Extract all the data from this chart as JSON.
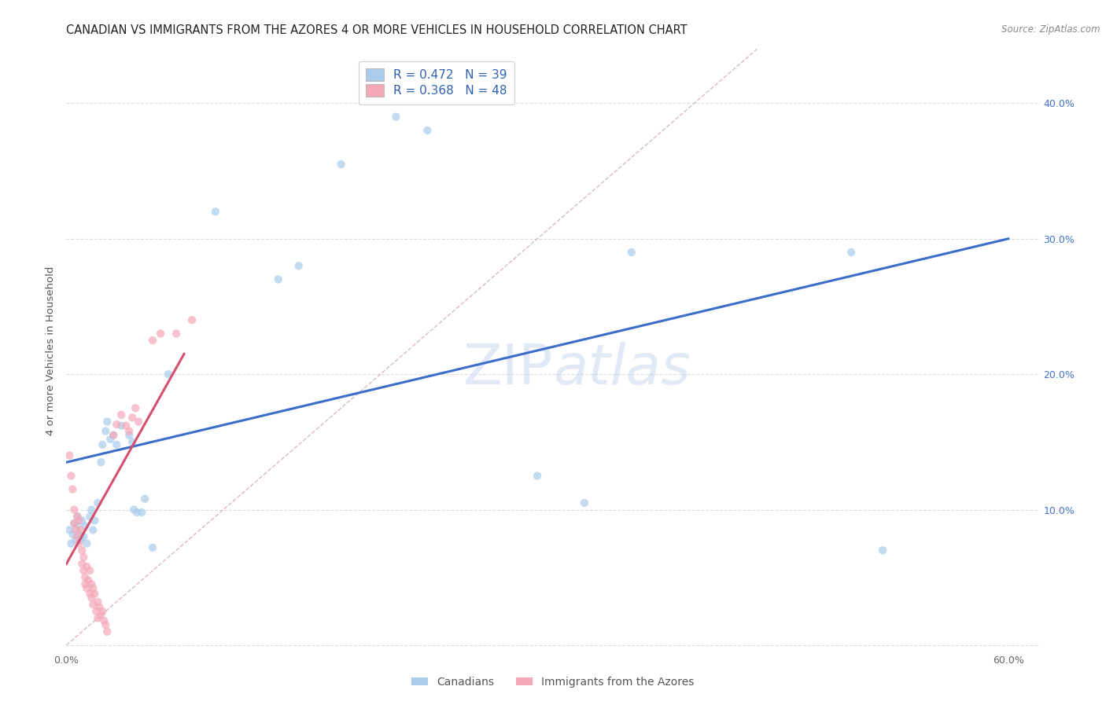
{
  "title": "CANADIAN VS IMMIGRANTS FROM THE AZORES 4 OR MORE VEHICLES IN HOUSEHOLD CORRELATION CHART",
  "source": "Source: ZipAtlas.com",
  "ylabel": "4 or more Vehicles in Household",
  "watermark": "ZIPatlas",
  "xlim": [
    0.0,
    0.62
  ],
  "ylim": [
    -0.005,
    0.44
  ],
  "xticks": [
    0.0,
    0.1,
    0.2,
    0.3,
    0.4,
    0.5,
    0.6
  ],
  "yticks": [
    0.0,
    0.1,
    0.2,
    0.3,
    0.4
  ],
  "canadians_scatter": [
    [
      0.002,
      0.085
    ],
    [
      0.003,
      0.075
    ],
    [
      0.004,
      0.082
    ],
    [
      0.005,
      0.09
    ],
    [
      0.006,
      0.078
    ],
    [
      0.007,
      0.088
    ],
    [
      0.007,
      0.095
    ],
    [
      0.008,
      0.082
    ],
    [
      0.009,
      0.078
    ],
    [
      0.01,
      0.092
    ],
    [
      0.011,
      0.08
    ],
    [
      0.012,
      0.088
    ],
    [
      0.013,
      0.075
    ],
    [
      0.015,
      0.095
    ],
    [
      0.016,
      0.1
    ],
    [
      0.017,
      0.085
    ],
    [
      0.018,
      0.092
    ],
    [
      0.02,
      0.105
    ],
    [
      0.022,
      0.135
    ],
    [
      0.023,
      0.148
    ],
    [
      0.025,
      0.158
    ],
    [
      0.026,
      0.165
    ],
    [
      0.028,
      0.152
    ],
    [
      0.03,
      0.155
    ],
    [
      0.032,
      0.148
    ],
    [
      0.035,
      0.162
    ],
    [
      0.04,
      0.155
    ],
    [
      0.042,
      0.15
    ],
    [
      0.043,
      0.1
    ],
    [
      0.045,
      0.098
    ],
    [
      0.048,
      0.098
    ],
    [
      0.05,
      0.108
    ],
    [
      0.055,
      0.072
    ],
    [
      0.065,
      0.2
    ],
    [
      0.095,
      0.32
    ],
    [
      0.135,
      0.27
    ],
    [
      0.148,
      0.28
    ],
    [
      0.175,
      0.355
    ],
    [
      0.21,
      0.39
    ],
    [
      0.23,
      0.38
    ],
    [
      0.3,
      0.125
    ],
    [
      0.33,
      0.105
    ],
    [
      0.36,
      0.29
    ],
    [
      0.5,
      0.29
    ],
    [
      0.52,
      0.07
    ]
  ],
  "azores_scatter": [
    [
      0.002,
      0.14
    ],
    [
      0.003,
      0.125
    ],
    [
      0.004,
      0.115
    ],
    [
      0.005,
      0.1
    ],
    [
      0.005,
      0.09
    ],
    [
      0.006,
      0.085
    ],
    [
      0.007,
      0.095
    ],
    [
      0.007,
      0.08
    ],
    [
      0.008,
      0.092
    ],
    [
      0.008,
      0.075
    ],
    [
      0.009,
      0.085
    ],
    [
      0.01,
      0.07
    ],
    [
      0.01,
      0.06
    ],
    [
      0.011,
      0.065
    ],
    [
      0.011,
      0.055
    ],
    [
      0.012,
      0.05
    ],
    [
      0.012,
      0.045
    ],
    [
      0.013,
      0.058
    ],
    [
      0.013,
      0.042
    ],
    [
      0.014,
      0.048
    ],
    [
      0.015,
      0.055
    ],
    [
      0.015,
      0.038
    ],
    [
      0.016,
      0.045
    ],
    [
      0.016,
      0.035
    ],
    [
      0.017,
      0.042
    ],
    [
      0.017,
      0.03
    ],
    [
      0.018,
      0.038
    ],
    [
      0.019,
      0.025
    ],
    [
      0.02,
      0.032
    ],
    [
      0.02,
      0.02
    ],
    [
      0.021,
      0.028
    ],
    [
      0.022,
      0.022
    ],
    [
      0.023,
      0.025
    ],
    [
      0.024,
      0.018
    ],
    [
      0.025,
      0.015
    ],
    [
      0.026,
      0.01
    ],
    [
      0.03,
      0.155
    ],
    [
      0.032,
      0.163
    ],
    [
      0.035,
      0.17
    ],
    [
      0.038,
      0.162
    ],
    [
      0.04,
      0.158
    ],
    [
      0.042,
      0.168
    ],
    [
      0.044,
      0.175
    ],
    [
      0.046,
      0.165
    ],
    [
      0.055,
      0.225
    ],
    [
      0.06,
      0.23
    ],
    [
      0.07,
      0.23
    ],
    [
      0.08,
      0.24
    ]
  ],
  "scatter_color_blue": "#A8CCEA",
  "scatter_color_pink": "#F4A8B8",
  "scatter_alpha": 0.7,
  "scatter_size": 55,
  "line_color_blue": "#3B6EC8",
  "line_color_pink": "#D45070",
  "diagonal_color": "#D0A8B0",
  "bg_color": "#ffffff",
  "grid_color": "#DCDCDC",
  "title_fontsize": 10.5,
  "axis_label_fontsize": 9.5,
  "tick_fontsize": 9,
  "legend_fontsize": 11,
  "blue_line_x0": 0.0,
  "blue_line_y0": 0.135,
  "blue_line_x1": 0.6,
  "blue_line_y1": 0.3,
  "pink_line_x0": 0.0,
  "pink_line_y0": 0.06,
  "pink_line_x1": 0.075,
  "pink_line_y1": 0.215
}
